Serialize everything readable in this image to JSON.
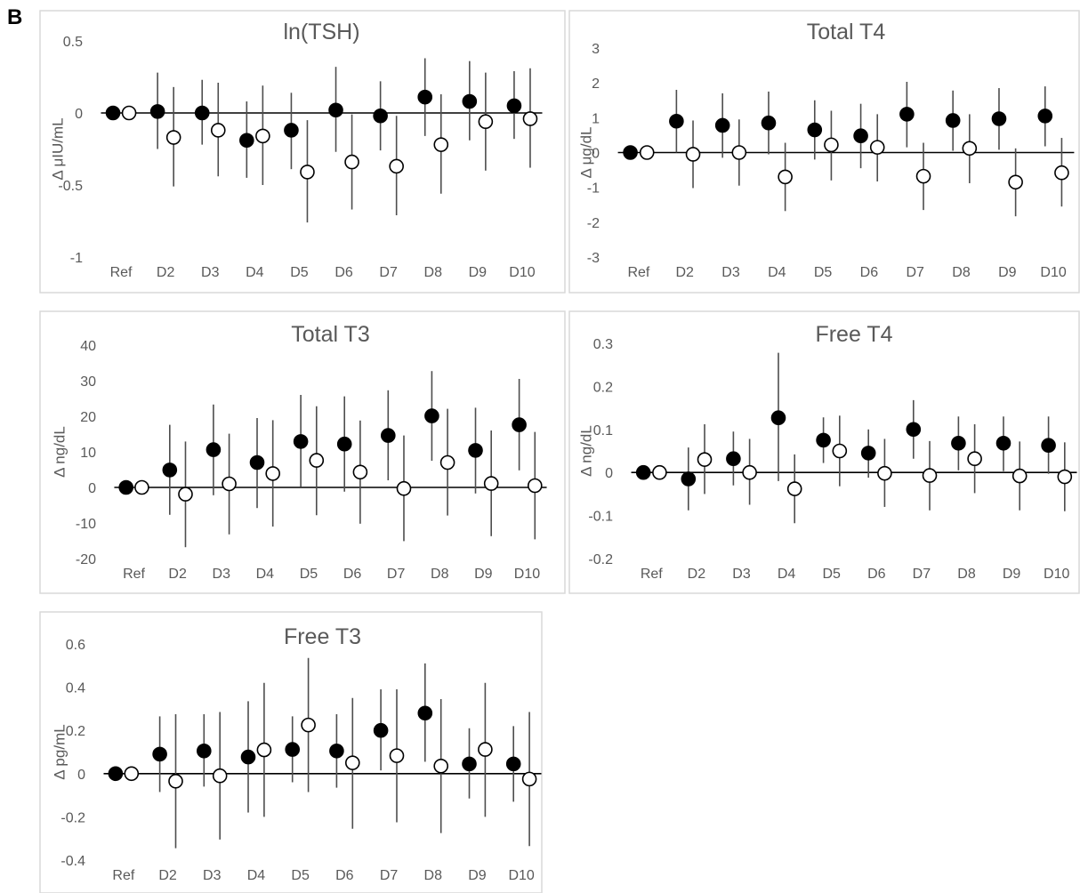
{
  "figure": {
    "panel_label": "B"
  },
  "chart_data": [
    {
      "type": "scatter",
      "title": "ln(TSH)",
      "xlabel": "",
      "ylabel": "Δ μIU/mL",
      "categories": [
        "Ref",
        "D2",
        "D3",
        "D4",
        "D5",
        "D6",
        "D7",
        "D8",
        "D9",
        "D10"
      ],
      "ylim": [
        -1,
        0.5
      ],
      "yticks": [
        -1,
        -0.5,
        0,
        0.5
      ],
      "ytick_labels": [
        "-1",
        "-0.5",
        "0",
        "0.5"
      ],
      "grid": false,
      "legend": "none",
      "series": [
        {
          "marker": "filled-circle",
          "values": [
            0,
            0.01,
            0.0,
            -0.19,
            -0.12,
            0.02,
            -0.02,
            0.11,
            0.08,
            0.05
          ],
          "lower": [
            0,
            -0.25,
            -0.22,
            -0.45,
            -0.39,
            -0.27,
            -0.26,
            -0.16,
            -0.19,
            -0.18
          ],
          "upper": [
            0,
            0.28,
            0.23,
            0.08,
            0.14,
            0.32,
            0.22,
            0.38,
            0.36,
            0.29
          ]
        },
        {
          "marker": "open-circle",
          "values": [
            0,
            -0.17,
            -0.12,
            -0.16,
            -0.41,
            -0.34,
            -0.37,
            -0.22,
            -0.06,
            -0.04
          ],
          "lower": [
            0,
            -0.51,
            -0.44,
            -0.5,
            -0.76,
            -0.67,
            -0.71,
            -0.56,
            -0.4,
            -0.38
          ],
          "upper": [
            0,
            0.18,
            0.21,
            0.19,
            -0.05,
            -0.01,
            -0.02,
            0.13,
            0.28,
            0.31
          ]
        }
      ]
    },
    {
      "type": "scatter",
      "title": "Total T4",
      "xlabel": "",
      "ylabel": "Δ μg/dL",
      "categories": [
        "Ref",
        "D2",
        "D3",
        "D4",
        "D5",
        "D6",
        "D7",
        "D8",
        "D9",
        "D10"
      ],
      "ylim": [
        -3,
        3
      ],
      "yticks": [
        -3,
        -2,
        -1,
        0,
        1,
        2,
        3
      ],
      "ytick_labels": [
        "-3",
        "-2",
        "-1",
        "0",
        "1",
        "2",
        "3"
      ],
      "grid": false,
      "legend": "none",
      "series": [
        {
          "marker": "filled-circle",
          "values": [
            0,
            0.9,
            0.78,
            0.85,
            0.65,
            0.48,
            1.1,
            0.92,
            0.97,
            1.05
          ],
          "lower": [
            0,
            0.0,
            -0.15,
            -0.05,
            -0.2,
            -0.45,
            0.15,
            0.05,
            0.08,
            0.18
          ],
          "upper": [
            0,
            1.8,
            1.7,
            1.75,
            1.5,
            1.4,
            2.03,
            1.78,
            1.85,
            1.9
          ]
        },
        {
          "marker": "open-circle",
          "values": [
            0,
            -0.05,
            0.0,
            -0.7,
            0.22,
            0.15,
            -0.68,
            0.12,
            -0.85,
            -0.58
          ],
          "lower": [
            0,
            -1.02,
            -0.95,
            -1.68,
            -0.8,
            -0.83,
            -1.65,
            -0.88,
            -1.83,
            -1.55
          ],
          "upper": [
            0,
            0.92,
            0.95,
            0.28,
            1.2,
            1.1,
            0.28,
            1.1,
            0.12,
            0.42
          ]
        }
      ]
    },
    {
      "type": "scatter",
      "title": "Total T3",
      "xlabel": "",
      "ylabel": "Δ ng/dL",
      "categories": [
        "Ref",
        "D2",
        "D3",
        "D4",
        "D5",
        "D6",
        "D7",
        "D8",
        "D9",
        "D10"
      ],
      "ylim": [
        -20,
        40
      ],
      "yticks": [
        -20,
        -10,
        0,
        10,
        20,
        30,
        40
      ],
      "ytick_labels": [
        "-20",
        "-10",
        "0",
        "10",
        "20",
        "30",
        "40"
      ],
      "grid": false,
      "legend": "none",
      "series": [
        {
          "marker": "filled-circle",
          "values": [
            0,
            4.9,
            10.6,
            7.0,
            12.9,
            12.2,
            14.6,
            20.1,
            10.4,
            17.6
          ],
          "lower": [
            0,
            -7.7,
            -2.2,
            -5.8,
            0.2,
            -1.2,
            2.0,
            7.5,
            -1.7,
            4.8
          ],
          "upper": [
            0,
            17.6,
            23.3,
            19.5,
            26.0,
            25.6,
            27.3,
            32.7,
            22.4,
            30.5
          ]
        },
        {
          "marker": "open-circle",
          "values": [
            0,
            -1.9,
            1.0,
            3.9,
            7.6,
            4.3,
            -0.3,
            7.0,
            1.1,
            0.5
          ],
          "lower": [
            0,
            -16.8,
            -13.2,
            -11.0,
            -7.8,
            -10.2,
            -15.1,
            -7.9,
            -13.7,
            -14.6
          ],
          "upper": [
            0,
            12.9,
            15.1,
            18.9,
            22.8,
            18.8,
            14.6,
            22.1,
            16.0,
            15.6
          ]
        }
      ]
    },
    {
      "type": "scatter",
      "title": "Free T4",
      "xlabel": "",
      "ylabel": "Δ ng/dL",
      "categories": [
        "Ref",
        "D2",
        "D3",
        "D4",
        "D5",
        "D6",
        "D7",
        "D8",
        "D9",
        "D10"
      ],
      "ylim": [
        -0.2,
        0.3
      ],
      "yticks": [
        -0.2,
        -0.1,
        0,
        0.1,
        0.2,
        0.3
      ],
      "ytick_labels": [
        "-0.2",
        "-0.1",
        "0",
        "0.1",
        "0.2",
        "0.3"
      ],
      "grid": false,
      "legend": "none",
      "series": [
        {
          "marker": "filled-circle",
          "values": [
            0,
            -0.015,
            0.032,
            0.127,
            0.075,
            0.045,
            0.1,
            0.068,
            0.068,
            0.063
          ],
          "lower": [
            0,
            -0.088,
            -0.03,
            -0.02,
            0.022,
            -0.012,
            0.032,
            0.005,
            0.003,
            -0.003
          ],
          "upper": [
            0,
            0.058,
            0.095,
            0.278,
            0.128,
            0.1,
            0.168,
            0.13,
            0.13,
            0.13
          ]
        },
        {
          "marker": "open-circle",
          "values": [
            0,
            0.03,
            0.0,
            -0.038,
            0.05,
            -0.002,
            -0.007,
            0.032,
            -0.008,
            -0.01
          ],
          "lower": [
            0,
            -0.05,
            -0.075,
            -0.118,
            -0.032,
            -0.08,
            -0.088,
            -0.048,
            -0.088,
            -0.09
          ],
          "upper": [
            0,
            0.112,
            0.078,
            0.042,
            0.132,
            0.078,
            0.073,
            0.112,
            0.072,
            0.07
          ]
        }
      ]
    },
    {
      "type": "scatter",
      "title": "Free T3",
      "xlabel": "",
      "ylabel": "Δ pg/mL",
      "categories": [
        "Ref",
        "D2",
        "D3",
        "D4",
        "D5",
        "D6",
        "D7",
        "D8",
        "D9",
        "D10"
      ],
      "ylim": [
        -0.4,
        0.6
      ],
      "yticks": [
        -0.4,
        -0.2,
        0,
        0.2,
        0.4,
        0.6
      ],
      "ytick_labels": [
        "-0.4",
        "-0.2",
        "0",
        "0.2",
        "0.4",
        "0.6"
      ],
      "grid": false,
      "legend": "none",
      "series": [
        {
          "marker": "filled-circle",
          "values": [
            0,
            0.09,
            0.105,
            0.077,
            0.112,
            0.105,
            0.2,
            0.28,
            0.045,
            0.045
          ],
          "lower": [
            0,
            -0.085,
            -0.06,
            -0.18,
            -0.04,
            -0.065,
            0.015,
            0.055,
            -0.115,
            -0.13
          ],
          "upper": [
            0,
            0.265,
            0.275,
            0.335,
            0.265,
            0.275,
            0.39,
            0.51,
            0.21,
            0.22
          ]
        },
        {
          "marker": "open-circle",
          "values": [
            0,
            -0.035,
            -0.01,
            0.11,
            0.225,
            0.05,
            0.083,
            0.035,
            0.112,
            -0.025
          ],
          "lower": [
            0,
            -0.345,
            -0.305,
            -0.2,
            -0.085,
            -0.255,
            -0.225,
            -0.275,
            -0.2,
            -0.335
          ],
          "upper": [
            0,
            0.275,
            0.285,
            0.42,
            0.535,
            0.35,
            0.39,
            0.345,
            0.42,
            0.285
          ]
        }
      ]
    }
  ]
}
